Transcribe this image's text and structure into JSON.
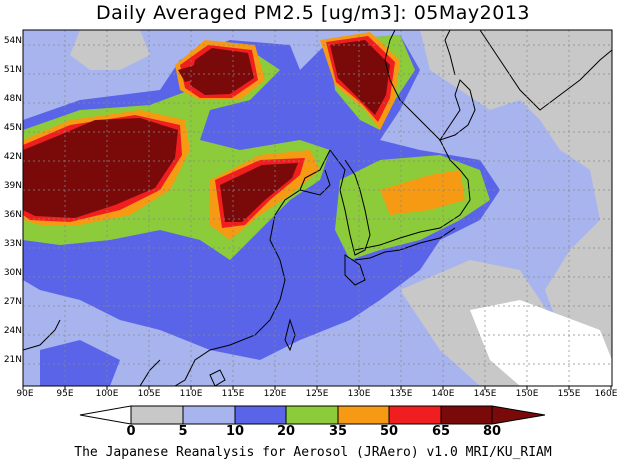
{
  "title": "Daily Averaged PM2.5 [ug/m3]: 05May2013",
  "credit": "The Japanese Reanalysis for Aerosol (JRAero) v1.0 MRI/KU_RIAM",
  "lat_labels": [
    "54N",
    "51N",
    "48N",
    "45N",
    "42N",
    "39N",
    "36N",
    "33N",
    "30N",
    "27N",
    "24N",
    "21N"
  ],
  "lon_labels": [
    "90E",
    "95E",
    "100E",
    "105E",
    "110E",
    "115E",
    "120E",
    "125E",
    "130E",
    "135E",
    "140E",
    "145E",
    "150E",
    "155E",
    "160E"
  ],
  "colorbar": {
    "thresholds": [
      "0",
      "5",
      "10",
      "20",
      "35",
      "50",
      "65",
      "80"
    ],
    "colors": [
      "#ffffff",
      "#c8c8c8",
      "#a8b4ee",
      "#5a64e8",
      "#8ccc3a",
      "#f59a12",
      "#f01e1e",
      "#7a0a0a"
    ]
  },
  "map_extent": {
    "lon": [
      90,
      160
    ],
    "lat": [
      19.5,
      55.5
    ]
  }
}
